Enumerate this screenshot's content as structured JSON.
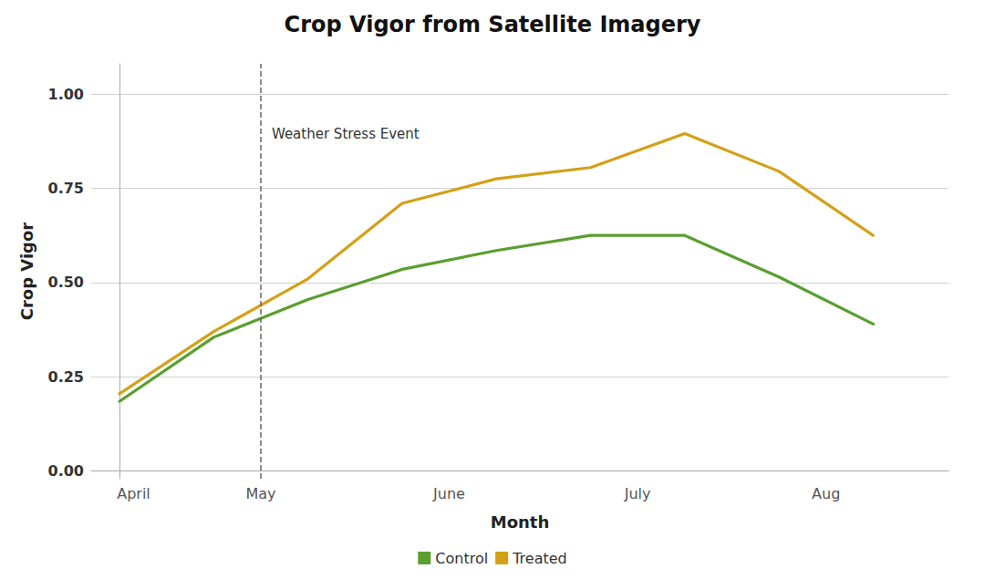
{
  "chart_data": {
    "type": "line",
    "title": "Crop Vigor from Satellite Imagery",
    "xlabel": "Month",
    "ylabel": "Crop Vigor",
    "series": [
      {
        "name": "Control",
        "color": "#5a9e2f",
        "x": [
          0,
          1,
          2,
          3,
          4,
          5,
          6,
          7,
          8
        ],
        "values": [
          0.185,
          0.355,
          0.455,
          0.535,
          0.585,
          0.625,
          0.625,
          0.515,
          0.39
        ]
      },
      {
        "name": "Treated",
        "color": "#d4a017",
        "x": [
          0,
          1,
          2,
          3,
          4,
          5,
          6,
          7,
          8
        ],
        "values": [
          0.205,
          0.37,
          0.51,
          0.71,
          0.775,
          0.805,
          0.895,
          0.795,
          0.625
        ]
      }
    ],
    "xlim": [
      -0.3,
      8.8
    ],
    "xticks": [
      {
        "value": 0.15,
        "label": "April"
      },
      {
        "value": 1.5,
        "label": "May"
      },
      {
        "value": 3.5,
        "label": "June"
      },
      {
        "value": 5.5,
        "label": "July"
      },
      {
        "value": 7.5,
        "label": "Aug"
      }
    ],
    "ylim": [
      -0.02,
      1.08
    ],
    "yticks": [
      {
        "value": 0.0,
        "label": "0.00"
      },
      0.25,
      {
        "value": 0.5,
        "label": "0.50"
      },
      0.75,
      {
        "value": 1.0,
        "label": "1.00"
      }
    ],
    "vline": {
      "x": 1.5,
      "label": "Weather Stress Event",
      "label_y": 0.895
    },
    "grid": "y",
    "legend": "bottom"
  }
}
